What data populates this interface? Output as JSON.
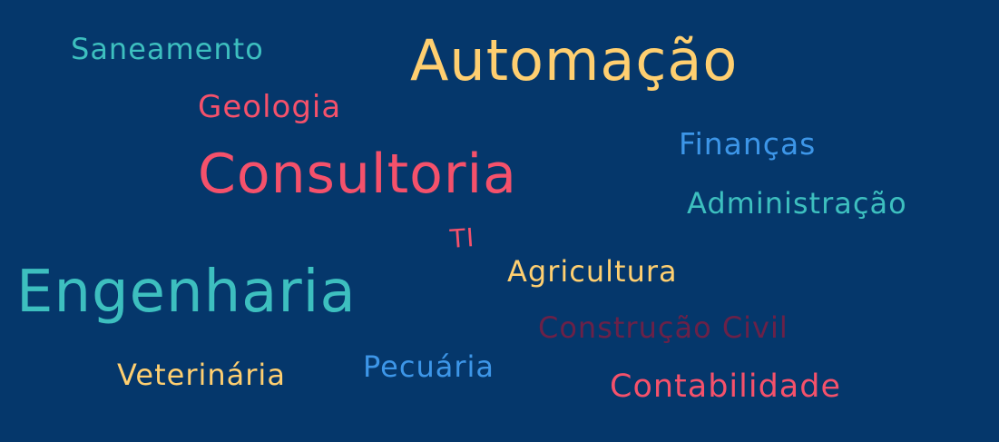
{
  "colors": {
    "background": "#05376b",
    "teal": "#3dbfbf",
    "yellow": "#ffcf70",
    "red": "#f5516b",
    "blue": "#3d96e8",
    "maroon": "#6b2148"
  },
  "words": [
    {
      "id": "automacao",
      "text": "Automação",
      "color": "#ffcf70"
    },
    {
      "id": "saneamento",
      "text": "Saneamento",
      "color": "#3dbfbf"
    },
    {
      "id": "geologia",
      "text": "Geologia",
      "color": "#f5516b"
    },
    {
      "id": "financas",
      "text": "Finanças",
      "color": "#3d96e8"
    },
    {
      "id": "consultoria",
      "text": "Consultoria",
      "color": "#f5516b"
    },
    {
      "id": "administracao",
      "text": "Administração",
      "color": "#3dbfbf"
    },
    {
      "id": "ti",
      "text": "TI",
      "color": "#f5516b"
    },
    {
      "id": "agricultura",
      "text": "Agricultura",
      "color": "#ffcf70"
    },
    {
      "id": "engenharia",
      "text": "Engenharia",
      "color": "#3dbfbf"
    },
    {
      "id": "construcao",
      "text": "Construção Civil",
      "color": "#6b2148"
    },
    {
      "id": "veterinaria",
      "text": "Veterinária",
      "color": "#ffcf70"
    },
    {
      "id": "pecuaria",
      "text": "Pecuária",
      "color": "#3d96e8"
    },
    {
      "id": "contabilidade",
      "text": "Contabilidade",
      "color": "#f5516b"
    }
  ]
}
